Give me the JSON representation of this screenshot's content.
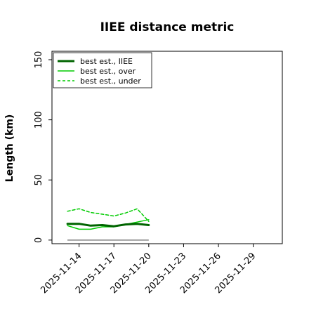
{
  "chart_data": {
    "type": "line",
    "title": "IIEE distance metric",
    "xlabel": "",
    "ylabel": "Length (km)",
    "ylim": [
      -3,
      157
    ],
    "xlim": [
      "2025-11-11T16:00",
      "2025-11-31T12:00"
    ],
    "yticks": [
      0,
      50,
      100,
      150
    ],
    "xticks": [
      "2025-11-14",
      "2025-11-17",
      "2025-11-20",
      "2025-11-23",
      "2025-11-26",
      "2025-11-29"
    ],
    "x": [
      "2025-11-13",
      "2025-11-14",
      "2025-11-15",
      "2025-11-16",
      "2025-11-17",
      "2025-11-18",
      "2025-11-19",
      "2025-11-20"
    ],
    "series": [
      {
        "name": "best est., IIEE",
        "color": "#006400",
        "style": "solid-thick",
        "values": [
          13.5,
          13.5,
          12,
          12.5,
          11.5,
          13,
          13.5,
          12.5
        ]
      },
      {
        "name": "best est., over",
        "color": "#00cc00",
        "style": "solid",
        "values": [
          12,
          9,
          9,
          11,
          11,
          13,
          15,
          17
        ]
      },
      {
        "name": "best est., under",
        "color": "#00cc00",
        "style": "dashed",
        "values": [
          24,
          26,
          23,
          21.5,
          20,
          22.5,
          26,
          15.5
        ]
      }
    ],
    "reference_line": {
      "value": 0,
      "color": "#808080",
      "from": "2025-11-13",
      "to": "2025-11-20"
    },
    "legend": "top-left",
    "grid": false
  }
}
